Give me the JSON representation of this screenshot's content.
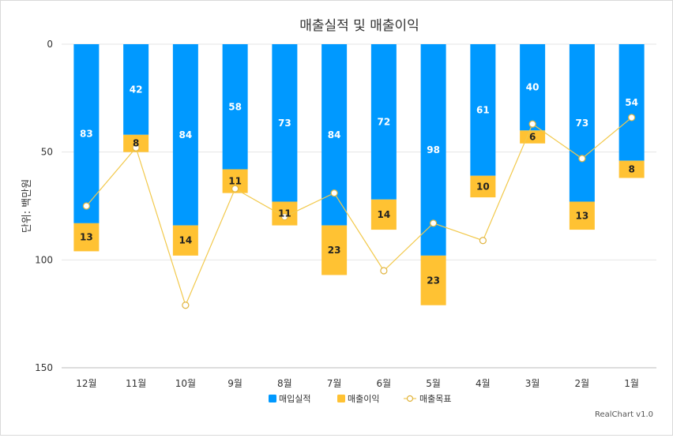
{
  "chart_data": {
    "type": "bar",
    "title": "매출실적 및 매출이익",
    "ylabel": "단위: 백만원",
    "xlabel": "",
    "categories": [
      "12월",
      "11월",
      "10월",
      "9월",
      "8월",
      "7월",
      "6월",
      "5월",
      "4월",
      "3월",
      "2월",
      "1월"
    ],
    "series": [
      {
        "name": "매입실적",
        "type": "bar",
        "stack": true,
        "color": "#0099ff",
        "values": [
          83,
          42,
          84,
          58,
          73,
          84,
          72,
          98,
          61,
          40,
          73,
          54
        ]
      },
      {
        "name": "매출이익",
        "type": "bar",
        "stack": true,
        "color": "#ffc233",
        "values": [
          13,
          8,
          14,
          11,
          11,
          23,
          14,
          23,
          10,
          6,
          13,
          8
        ]
      },
      {
        "name": "매출목표",
        "type": "line",
        "color": "#f2c94c",
        "values": [
          75,
          48,
          121,
          67,
          80,
          69,
          105,
          83,
          91,
          37,
          53,
          34
        ]
      }
    ],
    "yticks": [
      0,
      50,
      100,
      150
    ],
    "ylim": [
      0,
      150
    ],
    "y_inverted": true,
    "grid": true,
    "legend_position": "bottom"
  },
  "credit": "RealChart v1.0"
}
